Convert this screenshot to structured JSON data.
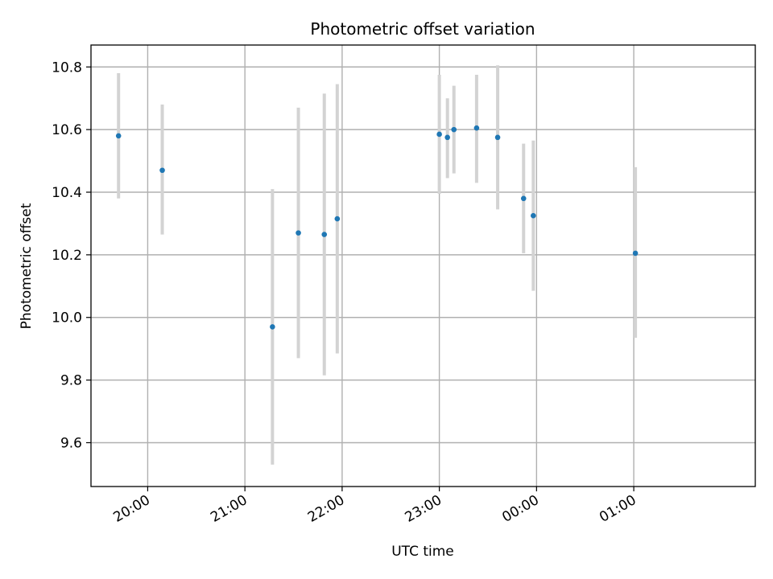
{
  "chart_data": {
    "type": "scatter",
    "title": "Photometric offset variation",
    "xlabel": "UTC time",
    "ylabel": "Photometric offset",
    "x_axis": {
      "kind": "time",
      "range": [
        "19:25",
        "26:15"
      ],
      "ticks": [
        {
          "value": "20:00",
          "label": "20:00"
        },
        {
          "value": "21:00",
          "label": "21:00"
        },
        {
          "value": "22:00",
          "label": "22:00"
        },
        {
          "value": "23:00",
          "label": "23:00"
        },
        {
          "value": "24:00",
          "label": "00:00"
        },
        {
          "value": "25:00",
          "label": "01:00"
        }
      ]
    },
    "y_axis": {
      "range": [
        9.46,
        10.87
      ],
      "ticks": [
        9.6,
        9.8,
        10.0,
        10.2,
        10.4,
        10.6,
        10.8
      ]
    },
    "grid": true,
    "point_color": "#1f77b4",
    "errorbar_color": "#d3d3d3",
    "points": [
      {
        "x": "19:42",
        "y": 10.58,
        "ylo": 10.38,
        "yhi": 10.78
      },
      {
        "x": "20:09",
        "y": 10.47,
        "ylo": 10.265,
        "yhi": 10.68
      },
      {
        "x": "21:17",
        "y": 9.97,
        "ylo": 9.53,
        "yhi": 10.41
      },
      {
        "x": "21:33",
        "y": 10.27,
        "ylo": 9.87,
        "yhi": 10.67
      },
      {
        "x": "21:49",
        "y": 10.265,
        "ylo": 9.815,
        "yhi": 10.715
      },
      {
        "x": "21:57",
        "y": 10.315,
        "ylo": 9.885,
        "yhi": 10.745
      },
      {
        "x": "23:00",
        "y": 10.585,
        "ylo": 10.395,
        "yhi": 10.775
      },
      {
        "x": "23:05",
        "y": 10.575,
        "ylo": 10.445,
        "yhi": 10.7
      },
      {
        "x": "23:09",
        "y": 10.6,
        "ylo": 10.46,
        "yhi": 10.74
      },
      {
        "x": "23:23",
        "y": 10.605,
        "ylo": 10.43,
        "yhi": 10.775
      },
      {
        "x": "23:36",
        "y": 10.575,
        "ylo": 10.345,
        "yhi": 10.805
      },
      {
        "x": "23:52",
        "y": 10.38,
        "ylo": 10.205,
        "yhi": 10.555
      },
      {
        "x": "23:58",
        "y": 10.325,
        "ylo": 10.085,
        "yhi": 10.565
      },
      {
        "x": "25:01",
        "y": 10.205,
        "ylo": 9.935,
        "yhi": 10.48
      }
    ]
  }
}
